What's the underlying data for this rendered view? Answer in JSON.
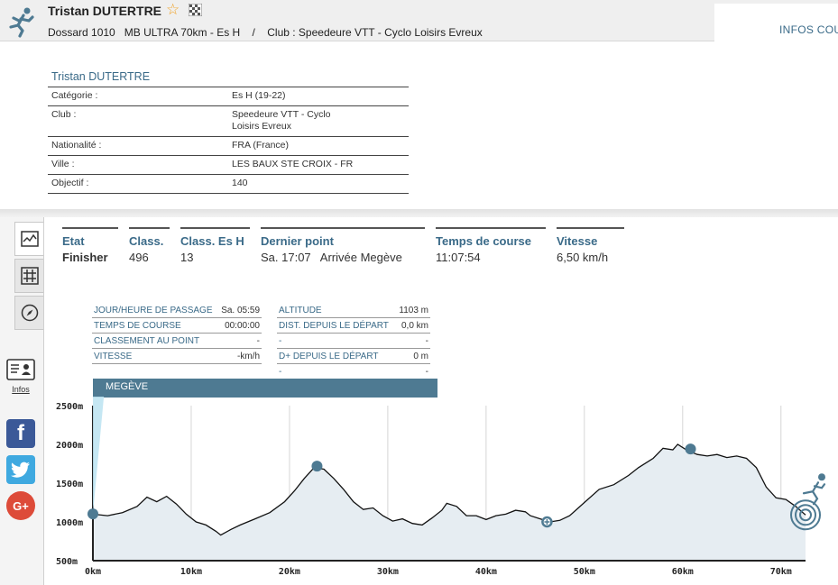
{
  "header": {
    "runner_name": "Tristan DUTERTRE",
    "bib": "Dossard 1010",
    "race": "MB ULTRA 70km - Es H",
    "separator": "/",
    "club": "Club : Speedeure VTT - Cyclo Loisirs Evreux",
    "tab_label": "INFOS COUI"
  },
  "info": {
    "title": "Tristan DUTERTRE",
    "rows": [
      {
        "label": "Catégorie :",
        "value": "Es H (19-22)"
      },
      {
        "label": "Club :",
        "value": "Speedeure VTT - Cyclo Loisirs Evreux"
      },
      {
        "label": "Nationalité :",
        "value": "FRA (France)"
      },
      {
        "label": "Ville :",
        "value": "LES BAUX STE CROIX - FR"
      },
      {
        "label": "Objectif :",
        "value": "140"
      }
    ]
  },
  "sidebar": {
    "infos_label": "Infos"
  },
  "stats": [
    {
      "label": "Etat",
      "value": "Finisher"
    },
    {
      "label": "Class.",
      "value": "496"
    },
    {
      "label": "Class. Es H",
      "value": "13"
    },
    {
      "label": "Dernier point",
      "value": "Sa. 17:07   Arrivée Megève"
    },
    {
      "label": "Temps de course",
      "value": "11:07:54"
    },
    {
      "label": "Vitesse",
      "value": "6,50 km/h"
    }
  ],
  "passage": {
    "left": [
      {
        "label": "JOUR/HEURE DE PASSAGE",
        "value": "Sa. 05:59"
      },
      {
        "label": "TEMPS DE COURSE",
        "value": "00:00:00"
      },
      {
        "label": "CLASSEMENT AU POINT",
        "value": "-"
      },
      {
        "label": "VITESSE",
        "value": "-km/h"
      }
    ],
    "right": [
      {
        "label": "ALTITUDE",
        "value": "1103 m"
      },
      {
        "label": "DIST. DEPUIS LE DÉPART",
        "value": "0,0 km"
      },
      {
        "label": "-",
        "value": "-"
      },
      {
        "label": "D+ DEPUIS LE DÉPART",
        "value": "0 m"
      },
      {
        "label": "-",
        "value": "-"
      }
    ],
    "checkpoint": "MEGÈVE"
  },
  "chart_data": {
    "type": "area",
    "x_ticks": [
      "0km",
      "10km",
      "20km",
      "30km",
      "40km",
      "50km",
      "60km",
      "70km"
    ],
    "y_ticks": [
      "500m",
      "1000m",
      "1500m",
      "2000m",
      "2500m"
    ],
    "xlim": [
      0,
      72.5
    ],
    "ylim": [
      500,
      2500
    ],
    "grid": "vertical",
    "profile": [
      [
        0,
        1100
      ],
      [
        1.5,
        1080
      ],
      [
        3,
        1120
      ],
      [
        4.5,
        1200
      ],
      [
        5.5,
        1320
      ],
      [
        6.5,
        1260
      ],
      [
        7.5,
        1330
      ],
      [
        8.5,
        1230
      ],
      [
        9.5,
        1100
      ],
      [
        10.5,
        1000
      ],
      [
        11.5,
        960
      ],
      [
        12.5,
        880
      ],
      [
        13,
        830
      ],
      [
        14,
        900
      ],
      [
        15,
        960
      ],
      [
        16.5,
        1040
      ],
      [
        18,
        1120
      ],
      [
        19.5,
        1260
      ],
      [
        20.5,
        1400
      ],
      [
        21.5,
        1560
      ],
      [
        22.5,
        1700
      ],
      [
        23.5,
        1680
      ],
      [
        24.5,
        1560
      ],
      [
        25.5,
        1420
      ],
      [
        26.5,
        1260
      ],
      [
        27.5,
        1160
      ],
      [
        28.5,
        1180
      ],
      [
        29.5,
        1080
      ],
      [
        30.5,
        1010
      ],
      [
        31.5,
        1040
      ],
      [
        32.5,
        980
      ],
      [
        33.5,
        960
      ],
      [
        34.5,
        1050
      ],
      [
        35.5,
        1150
      ],
      [
        36,
        1240
      ],
      [
        37,
        1200
      ],
      [
        38,
        1080
      ],
      [
        39,
        1080
      ],
      [
        40,
        1030
      ],
      [
        41,
        1080
      ],
      [
        42,
        1100
      ],
      [
        43,
        1150
      ],
      [
        44,
        1130
      ],
      [
        44.5,
        1080
      ],
      [
        45.5,
        1040
      ],
      [
        46.5,
        1000
      ],
      [
        47.5,
        1020
      ],
      [
        48.5,
        1080
      ],
      [
        50,
        1250
      ],
      [
        51.5,
        1420
      ],
      [
        53,
        1480
      ],
      [
        54.5,
        1600
      ],
      [
        55.5,
        1700
      ],
      [
        57,
        1820
      ],
      [
        58,
        1950
      ],
      [
        59,
        1930
      ],
      [
        59.5,
        2000
      ],
      [
        60.5,
        1920
      ],
      [
        61.5,
        1870
      ],
      [
        62.5,
        1850
      ],
      [
        63.5,
        1870
      ],
      [
        64.5,
        1830
      ],
      [
        65.5,
        1850
      ],
      [
        66.5,
        1820
      ],
      [
        67.5,
        1700
      ],
      [
        68.5,
        1450
      ],
      [
        69.5,
        1310
      ],
      [
        70.5,
        1290
      ],
      [
        71.5,
        1200
      ],
      [
        72.5,
        1090
      ]
    ],
    "checkpoints": [
      {
        "km": 0,
        "alt": 1103
      },
      {
        "km": 22.8,
        "alt": 1720
      },
      {
        "km": 46.2,
        "alt": 1000
      },
      {
        "km": 60.8,
        "alt": 1940
      },
      {
        "km": 72.5,
        "alt": 1090
      }
    ]
  },
  "colors": {
    "accent": "#3a6a88",
    "banner": "#4e7a92",
    "marker": "#4e7a92",
    "area_fill": "#e6edf2"
  }
}
